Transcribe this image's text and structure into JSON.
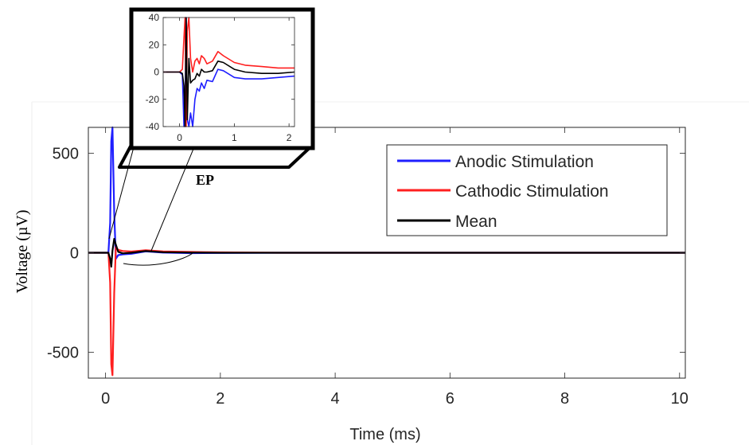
{
  "chart_data": [
    {
      "type": "line",
      "xlabel": "Time (ms)",
      "ylabel": "Voltage (µV)",
      "xlim": [
        -0.3,
        10.1
      ],
      "ylim": [
        -630,
        630
      ],
      "xticks": [
        0,
        2,
        4,
        6,
        8,
        10
      ],
      "yticks": [
        -500,
        0,
        500
      ],
      "grid": false,
      "legend_position": "top-right",
      "series": [
        {
          "name": "Anodic Stimulation",
          "color": "#1f1fff",
          "x": [
            -0.3,
            0.05,
            0.08,
            0.1,
            0.12,
            0.15,
            0.18,
            0.22,
            0.3,
            0.45,
            0.7,
            1.0,
            1.5,
            2.0,
            3,
            4,
            5,
            6,
            7,
            8,
            9,
            10,
            10.1
          ],
          "y": [
            0,
            0,
            150,
            560,
            640,
            200,
            -30,
            -12,
            -8,
            -5,
            7,
            1,
            -2,
            -1,
            0,
            0,
            0,
            0,
            0,
            0,
            0,
            0,
            0
          ]
        },
        {
          "name": "Cathodic Stimulation",
          "color": "#ff1f1f",
          "x": [
            -0.3,
            0.05,
            0.08,
            0.1,
            0.12,
            0.15,
            0.18,
            0.22,
            0.3,
            0.45,
            0.7,
            1.0,
            1.5,
            2.0,
            3,
            4,
            5,
            6,
            7,
            8,
            9,
            10,
            10.1
          ],
          "y": [
            0,
            0,
            -150,
            -560,
            -615,
            -200,
            30,
            14,
            9,
            6,
            13,
            7,
            4,
            2,
            0,
            0,
            0,
            0,
            0,
            0,
            0,
            0,
            0
          ]
        },
        {
          "name": "Mean",
          "color": "#000000",
          "x": [
            -0.3,
            0.05,
            0.08,
            0.1,
            0.12,
            0.15,
            0.18,
            0.22,
            0.3,
            0.45,
            0.7,
            1.0,
            1.5,
            2.0,
            3,
            4,
            5,
            6,
            7,
            8,
            9,
            10,
            10.1
          ],
          "y": [
            0,
            0,
            -30,
            -70,
            10,
            70,
            40,
            5,
            -3,
            0,
            9,
            3,
            1,
            0,
            0,
            0,
            0,
            0,
            0,
            0,
            0,
            0,
            0
          ]
        }
      ],
      "annotations": [
        {
          "text": "EP"
        }
      ]
    },
    {
      "type": "line",
      "role": "inset",
      "xlim": [
        -0.3,
        2.1
      ],
      "ylim": [
        -40,
        40
      ],
      "xticks": [
        0,
        1,
        2
      ],
      "yticks": [
        -40,
        -20,
        0,
        20,
        40
      ],
      "series": [
        {
          "name": "Anodic Stimulation",
          "color": "#1f1fff",
          "x": [
            -0.3,
            -0.1,
            0.0,
            0.05,
            0.08,
            0.1,
            0.12,
            0.14,
            0.17,
            0.2,
            0.24,
            0.28,
            0.32,
            0.36,
            0.4,
            0.45,
            0.5,
            0.6,
            0.7,
            0.8,
            1.0,
            1.2,
            1.5,
            1.8,
            2.1
          ],
          "y": [
            0,
            0,
            0,
            -2,
            -40,
            -30,
            45,
            -35,
            -40,
            -30,
            -45,
            -20,
            -12,
            -14,
            -8,
            -12,
            -6,
            -7,
            2,
            1,
            -4,
            -5,
            -5,
            -4,
            -3
          ]
        },
        {
          "name": "Cathodic Stimulation",
          "color": "#ff1f1f",
          "x": [
            -0.3,
            -0.1,
            0.0,
            0.05,
            0.08,
            0.1,
            0.12,
            0.14,
            0.17,
            0.2,
            0.24,
            0.28,
            0.32,
            0.36,
            0.4,
            0.45,
            0.5,
            0.6,
            0.7,
            0.8,
            1.0,
            1.2,
            1.5,
            1.8,
            2.1
          ],
          "y": [
            0,
            0,
            0,
            2,
            25,
            40,
            -40,
            30,
            40,
            10,
            0,
            8,
            10,
            6,
            12,
            10,
            6,
            8,
            15,
            12,
            7,
            5,
            4,
            3,
            3
          ]
        },
        {
          "name": "Mean",
          "color": "#000000",
          "x": [
            -0.3,
            -0.1,
            0.0,
            0.05,
            0.08,
            0.1,
            0.12,
            0.14,
            0.17,
            0.2,
            0.24,
            0.28,
            0.32,
            0.36,
            0.4,
            0.45,
            0.5,
            0.6,
            0.7,
            0.8,
            1.0,
            1.2,
            1.5,
            1.8,
            2.1
          ],
          "y": [
            0,
            0,
            0,
            -1,
            -10,
            -40,
            40,
            -35,
            10,
            -8,
            -6,
            -5,
            -1,
            -3,
            2,
            0,
            0,
            1,
            8,
            7,
            2,
            0,
            -1,
            -1,
            0
          ]
        }
      ]
    }
  ]
}
